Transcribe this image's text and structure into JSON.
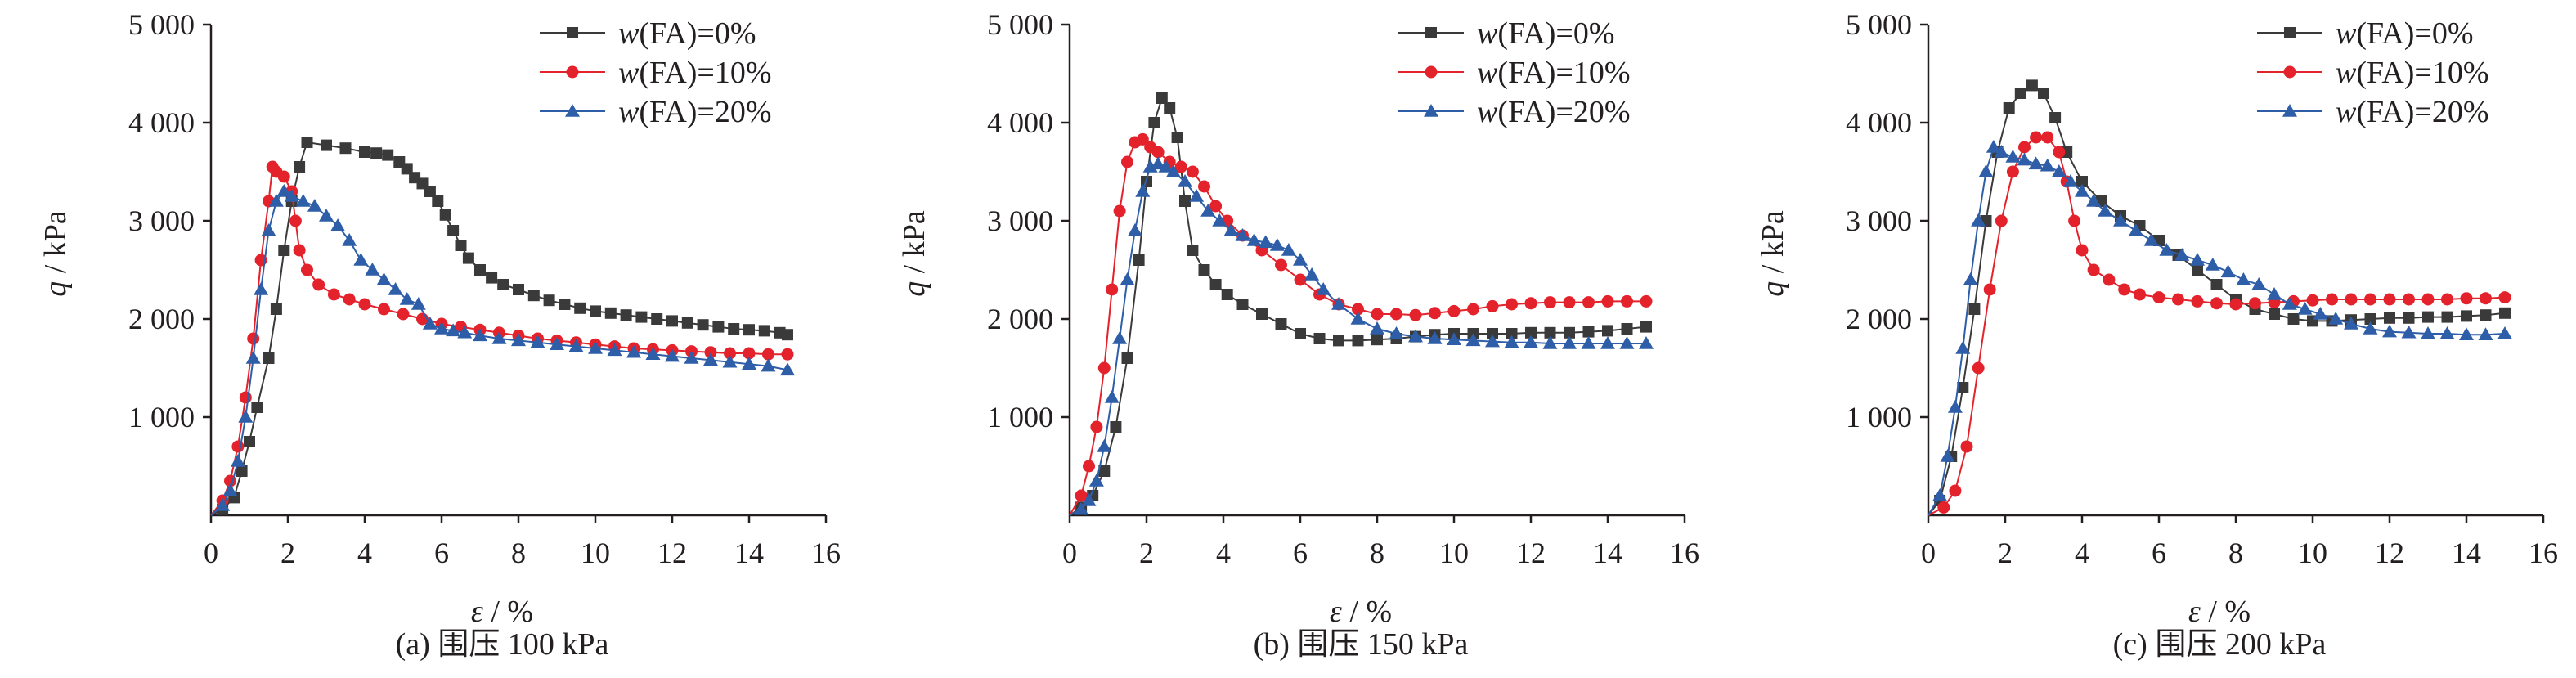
{
  "colors": {
    "FA0": "#3a3a3a",
    "FA10": "#e3222c",
    "FA20": "#2e5ea8",
    "axis": "#231f20"
  },
  "legend": {
    "var_prefix": "w",
    "entries": [
      "(FA)=0%",
      "(FA)=10%",
      "(FA)=20%"
    ]
  },
  "chart_data": [
    {
      "type": "line",
      "caption": "(a) 围压 100 kPa",
      "xlabel": {
        "symbol": "ε",
        "unit": " / %"
      },
      "ylabel": {
        "symbol": "q",
        "unit": " / kPa"
      },
      "xlim": [
        0,
        16
      ],
      "ylim": [
        0,
        5000
      ],
      "xticks": [
        0,
        2,
        4,
        6,
        8,
        10,
        12,
        14,
        16
      ],
      "yticks": [
        1000,
        2000,
        3000,
        4000,
        5000
      ],
      "ytick_labels": [
        "1 000",
        "2 000",
        "3 000",
        "4 000",
        "5 000"
      ],
      "series": [
        {
          "name": "w(FA)=0%",
          "marker": "square",
          "color": "#3a3a3a",
          "x": [
            0,
            0.3,
            0.6,
            0.8,
            1.0,
            1.2,
            1.5,
            1.7,
            1.9,
            2.1,
            2.3,
            2.5,
            3.0,
            3.5,
            4.0,
            4.3,
            4.6,
            4.9,
            5.1,
            5.3,
            5.5,
            5.7,
            5.9,
            6.1,
            6.3,
            6.5,
            6.7,
            7.0,
            7.3,
            7.6,
            8.0,
            8.4,
            8.8,
            9.2,
            9.6,
            10.0,
            10.4,
            10.8,
            11.2,
            11.6,
            12.0,
            12.4,
            12.8,
            13.2,
            13.6,
            14.0,
            14.4,
            14.8,
            15.0
          ],
          "y": [
            0,
            60,
            180,
            450,
            750,
            1100,
            1600,
            2100,
            2700,
            3200,
            3550,
            3800,
            3770,
            3740,
            3700,
            3690,
            3670,
            3600,
            3530,
            3440,
            3380,
            3300,
            3200,
            3060,
            2900,
            2750,
            2620,
            2500,
            2420,
            2350,
            2300,
            2240,
            2190,
            2150,
            2110,
            2080,
            2060,
            2040,
            2020,
            2000,
            1980,
            1960,
            1940,
            1920,
            1900,
            1890,
            1880,
            1860,
            1840
          ]
        },
        {
          "name": "w(FA)=10%",
          "marker": "circle",
          "color": "#e3222c",
          "x": [
            0,
            0.3,
            0.5,
            0.7,
            0.9,
            1.1,
            1.3,
            1.5,
            1.6,
            1.7,
            1.9,
            2.1,
            2.2,
            2.3,
            2.5,
            2.8,
            3.2,
            3.6,
            4.0,
            4.5,
            5.0,
            5.5,
            6.0,
            6.5,
            7.0,
            7.5,
            8.0,
            8.5,
            9.0,
            9.5,
            10.0,
            10.5,
            11.0,
            11.5,
            12.0,
            12.5,
            13.0,
            13.5,
            14.0,
            14.5,
            15.0
          ],
          "y": [
            0,
            150,
            350,
            700,
            1200,
            1800,
            2600,
            3200,
            3550,
            3500,
            3450,
            3300,
            3000,
            2700,
            2500,
            2350,
            2250,
            2200,
            2150,
            2100,
            2050,
            2000,
            1950,
            1920,
            1890,
            1860,
            1830,
            1800,
            1780,
            1760,
            1740,
            1720,
            1700,
            1690,
            1680,
            1670,
            1660,
            1650,
            1650,
            1640,
            1640
          ]
        },
        {
          "name": "w(FA)=20%",
          "marker": "triangle",
          "color": "#2e5ea8",
          "x": [
            0,
            0.3,
            0.5,
            0.7,
            0.9,
            1.1,
            1.3,
            1.5,
            1.7,
            1.9,
            2.1,
            2.4,
            2.7,
            3.0,
            3.3,
            3.6,
            3.9,
            4.2,
            4.5,
            4.8,
            5.1,
            5.4,
            5.7,
            6.0,
            6.3,
            6.6,
            7.0,
            7.5,
            8.0,
            8.5,
            9.0,
            9.5,
            10.0,
            10.5,
            11.0,
            11.5,
            12.0,
            12.5,
            13.0,
            13.5,
            14.0,
            14.5,
            15.0
          ],
          "y": [
            0,
            100,
            250,
            550,
            1000,
            1600,
            2300,
            2900,
            3200,
            3300,
            3250,
            3200,
            3150,
            3050,
            2950,
            2800,
            2600,
            2500,
            2400,
            2300,
            2200,
            2150,
            1950,
            1900,
            1880,
            1860,
            1830,
            1800,
            1780,
            1760,
            1740,
            1720,
            1700,
            1680,
            1660,
            1640,
            1620,
            1600,
            1580,
            1560,
            1540,
            1520,
            1480
          ]
        }
      ]
    },
    {
      "type": "line",
      "caption": "(b) 围压 150 kPa",
      "xlabel": {
        "symbol": "ε",
        "unit": " / %"
      },
      "ylabel": {
        "symbol": "q",
        "unit": " / kPa"
      },
      "xlim": [
        0,
        16
      ],
      "ylim": [
        0,
        5000
      ],
      "xticks": [
        0,
        2,
        4,
        6,
        8,
        10,
        12,
        14,
        16
      ],
      "yticks": [
        1000,
        2000,
        3000,
        4000,
        5000
      ],
      "ytick_labels": [
        "1 000",
        "2 000",
        "3 000",
        "4 000",
        "5 000"
      ],
      "series": [
        {
          "name": "w(FA)=0%",
          "marker": "square",
          "color": "#3a3a3a",
          "x": [
            0,
            0.3,
            0.6,
            0.9,
            1.2,
            1.5,
            1.8,
            2.0,
            2.2,
            2.4,
            2.6,
            2.8,
            3.0,
            3.2,
            3.5,
            3.8,
            4.1,
            4.5,
            5.0,
            5.5,
            6.0,
            6.5,
            7.0,
            7.5,
            8.0,
            8.5,
            9.0,
            9.5,
            10.0,
            10.5,
            11.0,
            11.5,
            12.0,
            12.5,
            13.0,
            13.5,
            14.0,
            14.5,
            15.0
          ],
          "y": [
            0,
            80,
            200,
            450,
            900,
            1600,
            2600,
            3400,
            4000,
            4250,
            4150,
            3850,
            3200,
            2700,
            2500,
            2350,
            2250,
            2150,
            2050,
            1950,
            1850,
            1800,
            1780,
            1780,
            1790,
            1800,
            1820,
            1840,
            1850,
            1850,
            1850,
            1850,
            1860,
            1860,
            1860,
            1870,
            1880,
            1900,
            1920
          ]
        },
        {
          "name": "w(FA)=10%",
          "marker": "circle",
          "color": "#e3222c",
          "x": [
            0,
            0.3,
            0.5,
            0.7,
            0.9,
            1.1,
            1.3,
            1.5,
            1.7,
            1.9,
            2.1,
            2.3,
            2.6,
            2.9,
            3.2,
            3.5,
            3.8,
            4.1,
            4.5,
            5.0,
            5.5,
            6.0,
            6.5,
            7.0,
            7.5,
            8.0,
            8.5,
            9.0,
            9.5,
            10.0,
            10.5,
            11.0,
            11.5,
            12.0,
            12.5,
            13.0,
            13.5,
            14.0,
            14.5,
            15.0
          ],
          "y": [
            0,
            200,
            500,
            900,
            1500,
            2300,
            3100,
            3600,
            3800,
            3830,
            3750,
            3700,
            3600,
            3550,
            3500,
            3350,
            3150,
            3000,
            2850,
            2700,
            2550,
            2400,
            2250,
            2150,
            2100,
            2050,
            2050,
            2040,
            2060,
            2080,
            2100,
            2130,
            2150,
            2160,
            2170,
            2170,
            2170,
            2180,
            2180,
            2180
          ]
        },
        {
          "name": "w(FA)=20%",
          "marker": "triangle",
          "color": "#2e5ea8",
          "x": [
            0,
            0.3,
            0.5,
            0.7,
            0.9,
            1.1,
            1.3,
            1.5,
            1.7,
            1.9,
            2.1,
            2.3,
            2.5,
            2.7,
            3.0,
            3.3,
            3.6,
            3.9,
            4.2,
            4.5,
            4.8,
            5.1,
            5.4,
            5.7,
            6.0,
            6.3,
            6.6,
            7.0,
            7.5,
            8.0,
            8.5,
            9.0,
            9.5,
            10.0,
            10.5,
            11.0,
            11.5,
            12.0,
            12.5,
            13.0,
            13.5,
            14.0,
            14.5,
            15.0
          ],
          "y": [
            0,
            60,
            150,
            350,
            700,
            1200,
            1800,
            2400,
            2900,
            3300,
            3550,
            3580,
            3550,
            3500,
            3400,
            3250,
            3100,
            3000,
            2900,
            2850,
            2800,
            2780,
            2750,
            2700,
            2600,
            2450,
            2300,
            2150,
            2000,
            1900,
            1850,
            1820,
            1800,
            1790,
            1780,
            1770,
            1760,
            1760,
            1750,
            1750,
            1750,
            1750,
            1750,
            1750
          ]
        }
      ]
    },
    {
      "type": "line",
      "caption": "(c) 围压 200 kPa",
      "xlabel": {
        "symbol": "ε",
        "unit": " / %"
      },
      "ylabel": {
        "symbol": "q",
        "unit": " / kPa"
      },
      "xlim": [
        0,
        16
      ],
      "ylim": [
        0,
        5000
      ],
      "xticks": [
        0,
        2,
        4,
        6,
        8,
        10,
        12,
        14,
        16
      ],
      "yticks": [
        1000,
        2000,
        3000,
        4000,
        5000
      ],
      "ytick_labels": [
        "1 000",
        "2 000",
        "3 000",
        "4 000",
        "5 000"
      ],
      "series": [
        {
          "name": "w(FA)=0%",
          "marker": "square",
          "color": "#3a3a3a",
          "x": [
            0,
            0.3,
            0.6,
            0.9,
            1.2,
            1.5,
            1.8,
            2.1,
            2.4,
            2.7,
            3.0,
            3.3,
            3.6,
            4.0,
            4.5,
            5.0,
            5.5,
            6.0,
            6.5,
            7.0,
            7.5,
            8.0,
            8.5,
            9.0,
            9.5,
            10.0,
            10.5,
            11.0,
            11.5,
            12.0,
            12.5,
            13.0,
            13.5,
            14.0,
            14.5,
            15.0
          ],
          "y": [
            0,
            150,
            600,
            1300,
            2100,
            3000,
            3700,
            4150,
            4300,
            4380,
            4300,
            4050,
            3700,
            3400,
            3200,
            3050,
            2950,
            2800,
            2650,
            2500,
            2350,
            2200,
            2100,
            2050,
            2000,
            1980,
            1980,
            1990,
            2000,
            2010,
            2010,
            2020,
            2020,
            2030,
            2040,
            2060
          ]
        },
        {
          "name": "w(FA)=10%",
          "marker": "circle",
          "color": "#e3222c",
          "x": [
            0,
            0.4,
            0.7,
            1.0,
            1.3,
            1.6,
            1.9,
            2.2,
            2.5,
            2.8,
            3.1,
            3.4,
            3.6,
            3.8,
            4.0,
            4.3,
            4.7,
            5.1,
            5.5,
            6.0,
            6.5,
            7.0,
            7.5,
            8.0,
            8.5,
            9.0,
            9.5,
            10.0,
            10.5,
            11.0,
            11.5,
            12.0,
            12.5,
            13.0,
            13.5,
            14.0,
            14.5,
            15.0
          ],
          "y": [
            0,
            80,
            250,
            700,
            1500,
            2300,
            3000,
            3500,
            3750,
            3850,
            3850,
            3700,
            3400,
            3000,
            2700,
            2500,
            2400,
            2300,
            2250,
            2220,
            2200,
            2180,
            2160,
            2150,
            2160,
            2170,
            2180,
            2190,
            2200,
            2200,
            2200,
            2200,
            2200,
            2200,
            2200,
            2210,
            2210,
            2220
          ]
        },
        {
          "name": "w(FA)=20%",
          "marker": "triangle",
          "color": "#2e5ea8",
          "x": [
            0,
            0.3,
            0.5,
            0.7,
            0.9,
            1.1,
            1.3,
            1.5,
            1.7,
            1.9,
            2.2,
            2.5,
            2.8,
            3.1,
            3.4,
            3.7,
            4.0,
            4.3,
            4.6,
            5.0,
            5.4,
            5.8,
            6.2,
            6.6,
            7.0,
            7.4,
            7.8,
            8.2,
            8.6,
            9.0,
            9.4,
            9.8,
            10.2,
            10.6,
            11.0,
            11.5,
            12.0,
            12.5,
            13.0,
            13.5,
            14.0,
            14.5,
            15.0
          ],
          "y": [
            0,
            200,
            600,
            1100,
            1700,
            2400,
            3000,
            3500,
            3750,
            3700,
            3650,
            3620,
            3580,
            3560,
            3500,
            3400,
            3300,
            3200,
            3100,
            3000,
            2900,
            2800,
            2700,
            2650,
            2600,
            2550,
            2480,
            2400,
            2350,
            2250,
            2150,
            2100,
            2050,
            2000,
            1950,
            1900,
            1870,
            1860,
            1850,
            1850,
            1840,
            1840,
            1850
          ]
        }
      ]
    }
  ]
}
